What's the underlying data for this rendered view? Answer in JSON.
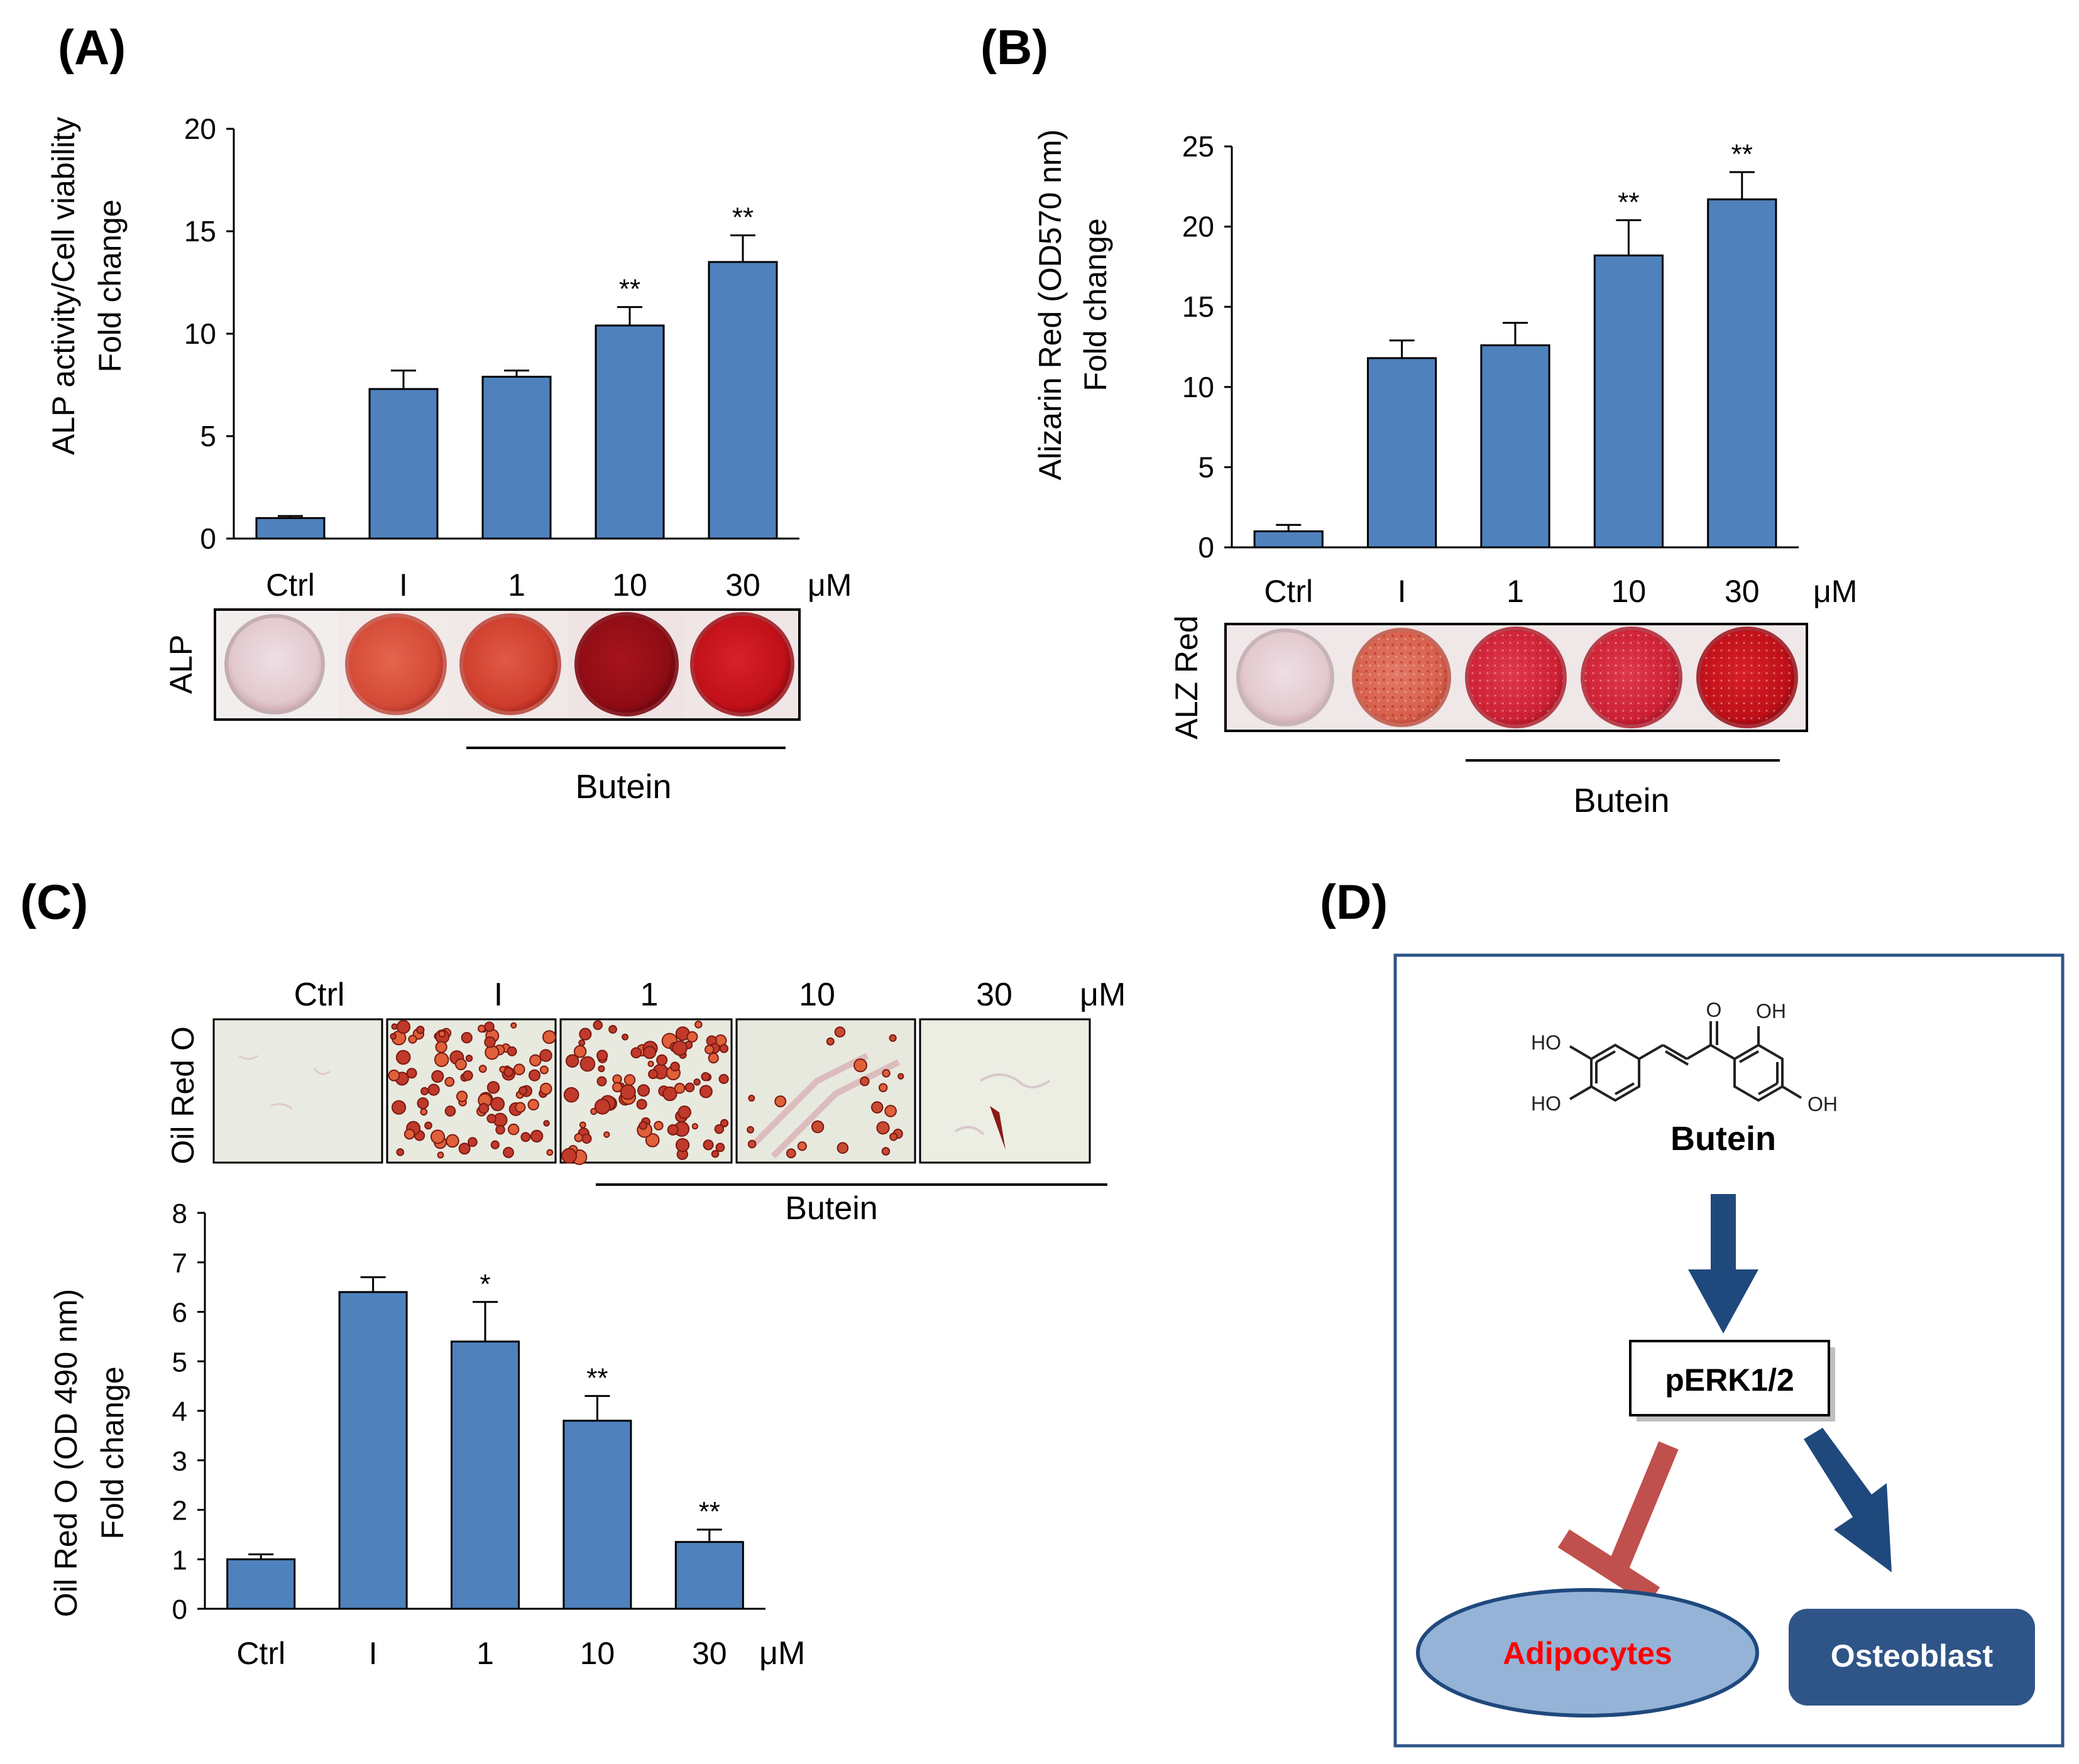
{
  "panels": {
    "A": {
      "letter": "(A)",
      "unit": "μM",
      "strip_label": "ALP",
      "bracket_label": "Butein"
    },
    "B": {
      "letter": "(B)",
      "unit": "μM",
      "strip_label": "ALZ Red",
      "bracket_label": "Butein"
    },
    "C": {
      "letter": "(C)",
      "unit": "μM",
      "strip_label": "Oil Red O",
      "bracket_label": "Butein",
      "image_labels": [
        "Ctrl",
        "I",
        "1",
        "10",
        "30"
      ]
    },
    "D": {
      "letter": "(D)",
      "compound": "Butein",
      "node": "pERK1/2",
      "left_target": "Adipocytes",
      "right_target": "Osteoblast",
      "groups": {
        "ho_top": "HO",
        "ho_bottom": "HO",
        "o": "O",
        "oh_top": "OH",
        "oh_bottom": "OH"
      }
    }
  },
  "colors": {
    "bar": "#4f81bd",
    "bar_edge": "#000000",
    "arrow": "#1f497d",
    "inhibit": "#c0504d",
    "adipocyte_fill": "#95b3d7",
    "adipocyte_edge": "#1f497d",
    "adipocyte_text": "#ff0000",
    "osteoblast_fill": "#2f5588",
    "box_border": "#2f5588"
  },
  "chart_data": [
    {
      "type": "bar",
      "panel": "A",
      "categories": [
        "Ctrl",
        "I",
        "1",
        "10",
        "30"
      ],
      "values": [
        1.0,
        7.3,
        7.9,
        10.4,
        13.5
      ],
      "errors": [
        0.1,
        0.9,
        0.3,
        0.9,
        1.3
      ],
      "significance": [
        "",
        "",
        "",
        "**",
        "**"
      ],
      "ylabel_lines": [
        "ALP activity/Cell viability",
        "Fold change"
      ],
      "ylim": [
        0,
        20
      ],
      "yticks": [
        0,
        5,
        10,
        15,
        20
      ],
      "xunit": "μM",
      "grid": false
    },
    {
      "type": "bar",
      "panel": "B",
      "categories": [
        "Ctrl",
        "I",
        "1",
        "10",
        "30"
      ],
      "values": [
        1.0,
        11.8,
        12.6,
        18.2,
        21.7
      ],
      "errors": [
        0.4,
        1.1,
        1.4,
        2.2,
        1.7
      ],
      "significance": [
        "",
        "",
        "",
        "**",
        "**"
      ],
      "ylabel_lines": [
        "Alizarin Red (OD570 nm)",
        "Fold change"
      ],
      "ylim": [
        0,
        25
      ],
      "yticks": [
        0,
        5,
        10,
        15,
        20,
        25
      ],
      "xunit": "μM",
      "grid": false
    },
    {
      "type": "bar",
      "panel": "C",
      "categories": [
        "Ctrl",
        "I",
        "1",
        "10",
        "30"
      ],
      "values": [
        1.0,
        6.4,
        5.4,
        3.8,
        1.35
      ],
      "errors": [
        0.1,
        0.3,
        0.8,
        0.5,
        0.25
      ],
      "significance": [
        "",
        "",
        "*",
        "**",
        "**"
      ],
      "ylabel_lines": [
        "Oil Red O (OD 490 nm)",
        "Fold change"
      ],
      "ylim": [
        0,
        8
      ],
      "yticks": [
        0,
        1,
        2,
        3,
        4,
        5,
        6,
        7,
        8
      ],
      "xunit": "μM",
      "grid": false
    }
  ]
}
